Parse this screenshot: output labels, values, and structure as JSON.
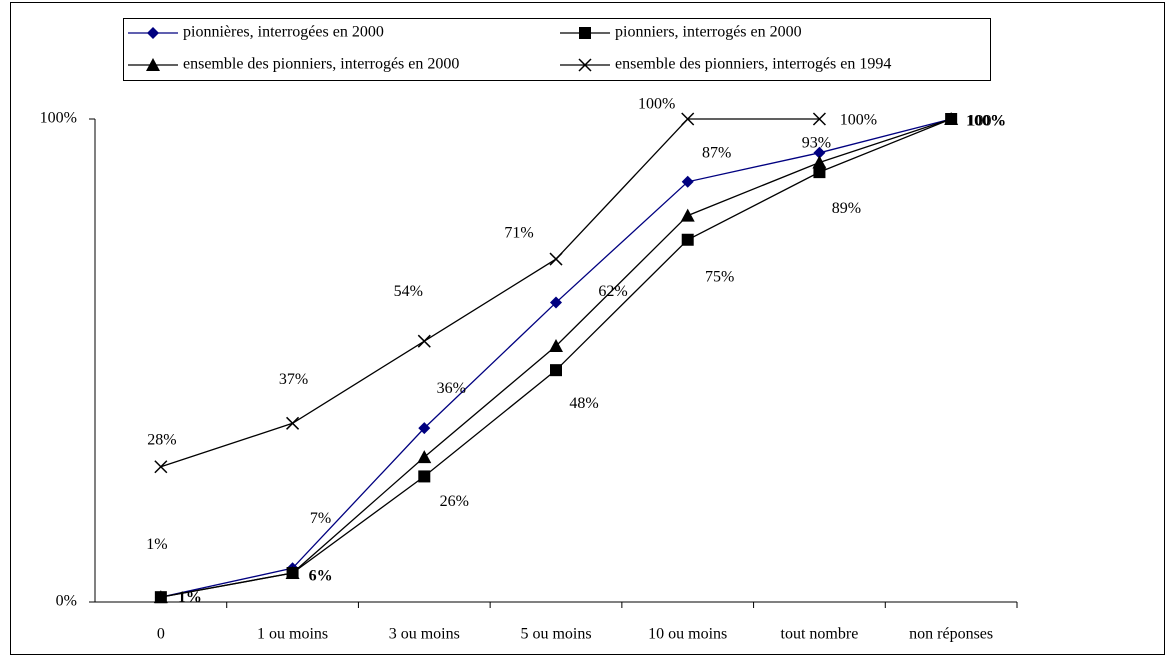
{
  "chart_data": {
    "type": "line",
    "categories": [
      "0",
      "1 ou moins",
      "3 ou moins",
      "5 ou moins",
      "10 ou moins",
      "tout nombre",
      "non réponses"
    ],
    "ylim": [
      0,
      100
    ],
    "yticks": [
      {
        "value": 0,
        "label": "0%"
      },
      {
        "value": 100,
        "label": "100%"
      }
    ],
    "grid": false,
    "series": [
      {
        "name": "pionnières, interrogées en 2000",
        "color": "#000080",
        "marker": "diamond",
        "values": [
          1,
          7,
          36,
          62,
          87,
          93,
          100
        ],
        "value_labels": [
          "1%",
          "7%",
          "36%",
          "62%",
          "87%",
          "93%",
          "100%"
        ]
      },
      {
        "name": "pionniers, interrogés en 2000",
        "color": "#000000",
        "marker": "square",
        "values": [
          1,
          6,
          26,
          48,
          75,
          89,
          100
        ],
        "value_labels": [
          "1%",
          "6%",
          "26%",
          "48%",
          "75%",
          "89%",
          "100%"
        ]
      },
      {
        "name": "ensemble des pionniers, interrogés en 2000",
        "color": "#000000",
        "marker": "triangle",
        "values": [
          1,
          6,
          30,
          53,
          80,
          91,
          100
        ]
      },
      {
        "name": "ensemble des pionniers, interrogés en 1994",
        "color": "#000000",
        "marker": "x",
        "values": [
          28,
          37,
          54,
          71,
          100,
          100,
          null
        ],
        "value_labels": [
          "28%",
          "37%",
          "54%",
          "71%",
          "100%",
          "100%",
          null
        ]
      }
    ]
  }
}
